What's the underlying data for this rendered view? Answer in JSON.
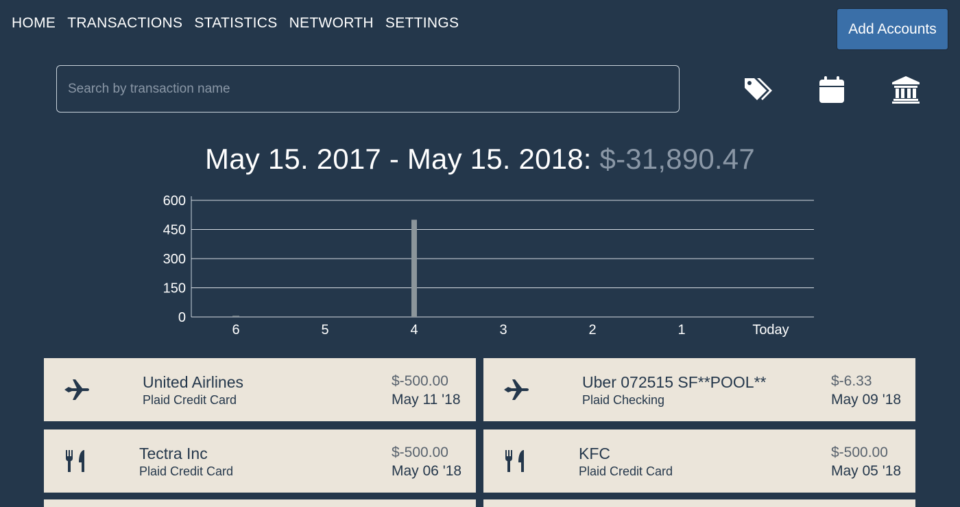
{
  "nav": {
    "items": [
      "HOME",
      "TRANSACTIONS",
      "STATISTICS",
      "NETWORTH",
      "SETTINGS"
    ],
    "add_accounts_label": "Add Accounts"
  },
  "search": {
    "placeholder": "Search by transaction name"
  },
  "toolbar": {
    "icons": [
      "tags-icon",
      "calendar-icon",
      "bank-icon"
    ]
  },
  "summary": {
    "range_label": "May 15. 2017 - May 15. 2018:",
    "total": "$-31,890.47"
  },
  "chart_data": {
    "type": "bar",
    "categories": [
      "6",
      "5",
      "4",
      "3",
      "2",
      "1",
      "Today"
    ],
    "values": [
      6,
      0,
      500,
      0,
      0,
      0,
      0
    ],
    "yticks": [
      0,
      150,
      300,
      450,
      600
    ],
    "ylim": [
      0,
      600
    ],
    "grid": true,
    "bar_color": "#8c969b"
  },
  "transactions": [
    {
      "icon": "airplane-icon",
      "name": "United Airlines",
      "account": "Plaid Credit Card",
      "amount": "$-500.00",
      "date": "May 11 '18"
    },
    {
      "icon": "airplane-icon",
      "name": "Uber 072515 SF**POOL**",
      "account": "Plaid Checking",
      "amount": "$-6.33",
      "date": "May 09 '18"
    },
    {
      "icon": "utensils-icon",
      "name": "Tectra Inc",
      "account": "Plaid Credit Card",
      "amount": "$-500.00",
      "date": "May 06 '18"
    },
    {
      "icon": "utensils-icon",
      "name": "KFC",
      "account": "Plaid Credit Card",
      "amount": "$-500.00",
      "date": "May 05 '18"
    }
  ],
  "colors": {
    "background": "#24374b",
    "card": "#ebe5da",
    "accent": "#3a6fa8",
    "muted": "#8a97a6"
  }
}
